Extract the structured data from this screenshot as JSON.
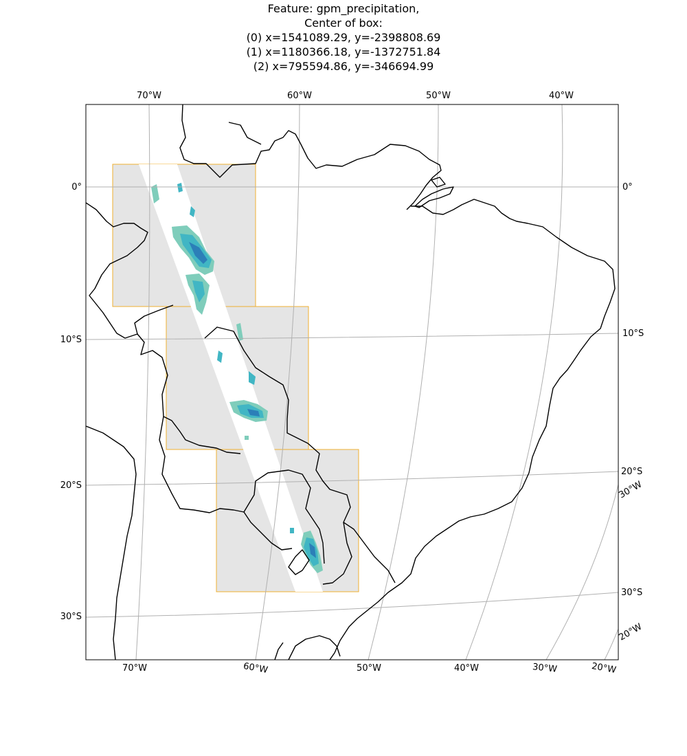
{
  "title": {
    "line1": "Feature: gpm_precipitation,",
    "line2": "Center of box:",
    "line3": "(0) x=1541089.29, y=-2398808.69",
    "line4": "(1) x=1180366.18, y=-1372751.84",
    "line5": "(2) x=795594.86, y=-346694.99"
  },
  "labels": {
    "top_70w": "70°W",
    "top_60w": "60°W",
    "top_50w": "50°W",
    "top_40w": "40°W",
    "left_0": "0°",
    "left_10s": "10°S",
    "left_20s": "20°S",
    "left_30s": "30°S",
    "right_0": "0°",
    "right_10s": "10°S",
    "right_20s": "20°S",
    "right_30w": "30°W",
    "right_30s": "30°S",
    "right_20w": "20°W",
    "bot_70w": "70°W",
    "bot_60w": "60°W",
    "bot_50w": "50°W",
    "bot_40w": "40°W",
    "bot_30w": "30°W",
    "bot_20w": "20°W"
  },
  "colors": {
    "box_fill": "#e5e5e5",
    "box_edge": "#f0b030",
    "gridline": "#b0b0b0",
    "coast": "#000000",
    "precip_light": "#7fcdbb",
    "precip_mid": "#41b6c4",
    "precip_dark": "#2c7fb8"
  },
  "boxes": [
    "box-0",
    "box-1",
    "box-2"
  ]
}
